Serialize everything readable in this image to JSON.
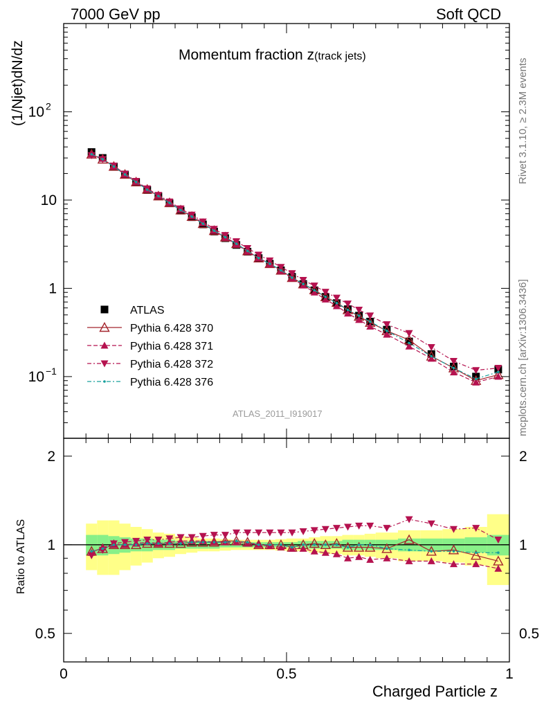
{
  "header": {
    "left": "7000 GeV pp",
    "right": "Soft QCD"
  },
  "side": {
    "rivet": "Rivet 3.1.10, ≥ 2.3M events",
    "mcplots": "mcplots.cern.ch [arXiv:1306.3436]"
  },
  "chart_data": [
    {
      "type": "scatter",
      "title_main": "Momentum fraction ",
      "title_z": "z",
      "title_sub": "(track jets)",
      "watermark": "ATLAS_2011_I919017",
      "ylabel": "(1/Njet)dN/dz",
      "yscale": "log",
      "ylim": [
        0.02,
        1000
      ],
      "xlim": [
        0,
        1
      ],
      "yticks": [
        {
          "v": 0.1,
          "base": "10",
          "exp": "−1"
        },
        {
          "v": 1,
          "base": "1",
          "exp": ""
        },
        {
          "v": 10,
          "base": "10",
          "exp": ""
        },
        {
          "v": 100,
          "base": "10",
          "exp": "2"
        }
      ],
      "x": [
        0.0625,
        0.0875,
        0.1125,
        0.1375,
        0.1625,
        0.1875,
        0.2125,
        0.2375,
        0.2625,
        0.2875,
        0.3125,
        0.3375,
        0.3625,
        0.3875,
        0.4125,
        0.4375,
        0.4625,
        0.4875,
        0.5125,
        0.5375,
        0.5625,
        0.5875,
        0.6125,
        0.6375,
        0.6625,
        0.6875,
        0.725,
        0.775,
        0.825,
        0.875,
        0.925,
        0.975
      ],
      "series": [
        {
          "name": "ATLAS",
          "color": "#000000",
          "marker": "square",
          "values": [
            35,
            30,
            24,
            19.5,
            16,
            13,
            11,
            9.2,
            7.6,
            6.4,
            5.3,
            4.4,
            3.7,
            3.1,
            2.6,
            2.2,
            1.9,
            1.6,
            1.35,
            1.12,
            0.95,
            0.8,
            0.68,
            0.58,
            0.49,
            0.42,
            0.34,
            0.25,
            0.18,
            0.13,
            0.1,
            0.12
          ]
        },
        {
          "name": "Pythia 6.428 370",
          "color": "#a4252d",
          "marker": "triangle-open",
          "dash": "",
          "values": [
            33,
            29,
            24,
            19.5,
            16,
            13.2,
            11.1,
            9.3,
            7.7,
            6.5,
            5.4,
            4.5,
            3.8,
            3.2,
            2.65,
            2.2,
            1.9,
            1.6,
            1.32,
            1.12,
            0.96,
            0.8,
            0.69,
            0.57,
            0.48,
            0.41,
            0.33,
            0.26,
            0.17,
            0.125,
            0.09,
            0.105
          ]
        },
        {
          "name": "Pythia 6.428 371",
          "color": "#b5124f",
          "marker": "triangle-up",
          "dash": "6,3",
          "values": [
            33,
            29.5,
            24,
            19.5,
            16,
            13.2,
            11.1,
            9.3,
            7.8,
            6.6,
            5.5,
            4.5,
            3.75,
            3.15,
            2.62,
            2.2,
            1.88,
            1.58,
            1.3,
            1.08,
            0.9,
            0.75,
            0.63,
            0.52,
            0.44,
            0.37,
            0.3,
            0.22,
            0.16,
            0.112,
            0.086,
            0.1
          ]
        },
        {
          "name": "Pythia 6.428 372",
          "color": "#b5124f",
          "marker": "triangle-down",
          "dash": "6,3,2,3",
          "values": [
            32,
            29,
            24.5,
            19.8,
            16.4,
            13.5,
            11.4,
            9.6,
            8.0,
            6.8,
            5.7,
            4.7,
            4.0,
            3.4,
            2.85,
            2.4,
            2.06,
            1.74,
            1.48,
            1.24,
            1.07,
            0.91,
            0.78,
            0.67,
            0.57,
            0.49,
            0.39,
            0.31,
            0.215,
            0.15,
            0.118,
            0.125
          ]
        },
        {
          "name": "Pythia 6.428 376",
          "color": "#17a09c",
          "marker": "dot",
          "dash": "6,3,2,3",
          "values": [
            33,
            29,
            24,
            19.5,
            16,
            13.1,
            11.1,
            9.3,
            7.7,
            6.5,
            5.4,
            4.5,
            3.8,
            3.2,
            2.65,
            2.2,
            1.9,
            1.6,
            1.32,
            1.12,
            0.95,
            0.8,
            0.68,
            0.57,
            0.49,
            0.42,
            0.33,
            0.24,
            0.17,
            0.125,
            0.094,
            0.113
          ]
        }
      ]
    },
    {
      "type": "scatter",
      "ylabel": "Ratio to ATLAS",
      "xlabel": "Charged Particle z",
      "ylim": [
        0.4,
        2.3
      ],
      "xlim": [
        0,
        1
      ],
      "yticks": [
        0.5,
        1,
        2
      ],
      "xticks": [
        {
          "v": 0,
          "label": "0"
        },
        {
          "v": 0.5,
          "label": "0.5"
        },
        {
          "v": 1,
          "label": "1"
        }
      ],
      "bands": {
        "yellow_half": [
          0.18,
          0.21,
          0.21,
          0.18,
          0.15,
          0.13,
          0.1,
          0.09,
          0.07,
          0.06,
          0.05,
          0.05,
          0.045,
          0.04,
          0.04,
          0.04,
          0.04,
          0.045,
          0.05,
          0.05,
          0.06,
          0.07,
          0.07,
          0.08,
          0.08,
          0.09,
          0.1,
          0.12,
          0.12,
          0.13,
          0.15,
          0.27
        ],
        "green_half": [
          0.08,
          0.08,
          0.07,
          0.06,
          0.05,
          0.05,
          0.04,
          0.04,
          0.03,
          0.03,
          0.03,
          0.03,
          0.02,
          0.02,
          0.02,
          0.02,
          0.02,
          0.02,
          0.02,
          0.03,
          0.03,
          0.03,
          0.03,
          0.04,
          0.04,
          0.04,
          0.04,
          0.05,
          0.05,
          0.05,
          0.06,
          0.08
        ]
      },
      "series": [
        {
          "name": "Pythia 6.428 370",
          "values": [
            0.95,
            0.97,
            1.0,
            1.0,
            1.0,
            1.01,
            1.01,
            1.01,
            1.01,
            1.02,
            1.02,
            1.02,
            1.03,
            1.03,
            1.02,
            1.0,
            1.0,
            1.0,
            0.98,
            1.0,
            1.01,
            1.0,
            1.01,
            0.98,
            0.98,
            0.98,
            0.97,
            1.04,
            0.95,
            0.96,
            0.92,
            0.88
          ]
        },
        {
          "name": "Pythia 6.428 371",
          "values": [
            0.94,
            0.98,
            1.0,
            1.0,
            1.01,
            1.02,
            1.01,
            1.02,
            1.03,
            1.03,
            1.03,
            1.02,
            1.02,
            1.02,
            1.01,
            1.0,
            0.99,
            0.98,
            0.97,
            0.97,
            0.95,
            0.94,
            0.93,
            0.9,
            0.91,
            0.89,
            0.9,
            0.88,
            0.88,
            0.86,
            0.86,
            0.83
          ]
        },
        {
          "name": "Pythia 6.428 372",
          "values": [
            0.92,
            0.96,
            1.01,
            1.02,
            1.03,
            1.04,
            1.04,
            1.05,
            1.06,
            1.06,
            1.07,
            1.08,
            1.08,
            1.1,
            1.1,
            1.1,
            1.1,
            1.1,
            1.1,
            1.11,
            1.12,
            1.13,
            1.14,
            1.15,
            1.16,
            1.16,
            1.14,
            1.22,
            1.18,
            1.13,
            1.14,
            1.04
          ]
        },
        {
          "name": "Pythia 6.428 376",
          "values": [
            0.95,
            0.97,
            1.0,
            1.0,
            1.0,
            1.01,
            1.01,
            1.01,
            1.01,
            1.02,
            1.02,
            1.02,
            1.02,
            1.03,
            1.02,
            1.0,
            1.0,
            1.0,
            0.98,
            1.0,
            1.0,
            1.0,
            1.0,
            0.98,
            1.0,
            1.0,
            0.97,
            0.96,
            0.95,
            0.95,
            0.94,
            0.94
          ]
        }
      ]
    }
  ]
}
